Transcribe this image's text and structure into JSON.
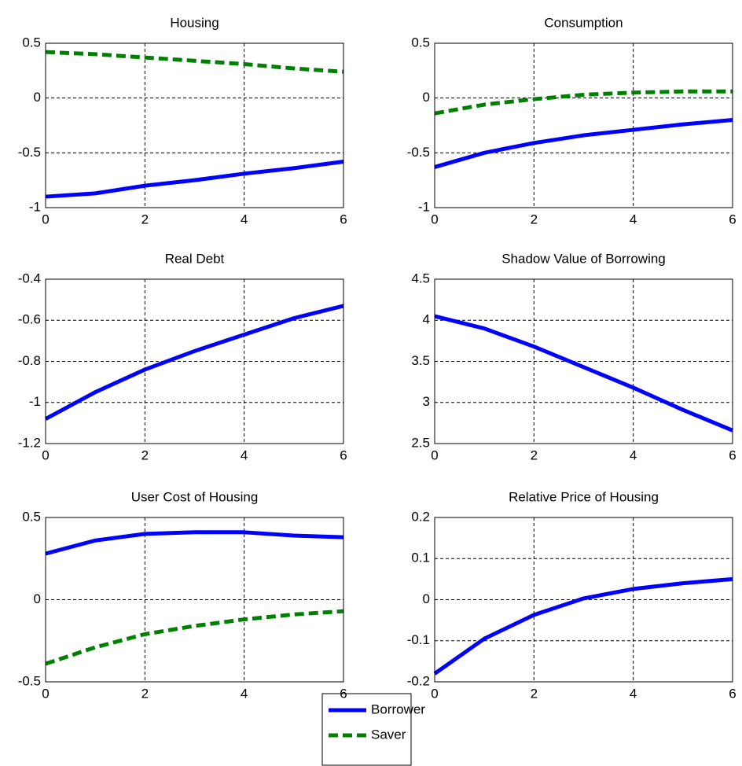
{
  "chart_data": [
    {
      "type": "line",
      "title": "Housing",
      "x": [
        0,
        1,
        2,
        3,
        4,
        5,
        6
      ],
      "xlim": [
        0,
        6
      ],
      "xticks": [
        0,
        2,
        4,
        6
      ],
      "ylim": [
        -1,
        0.5
      ],
      "yticks": [
        -1,
        -0.5,
        0,
        0.5
      ],
      "grid": true,
      "series": [
        {
          "name": "Borrower",
          "color": "#0000ff",
          "line_style": "solid",
          "values": [
            -0.9,
            -0.87,
            -0.8,
            -0.75,
            -0.69,
            -0.64,
            -0.58
          ]
        },
        {
          "name": "Saver",
          "color": "#008000",
          "line_style": "dashed",
          "values": [
            0.42,
            0.4,
            0.37,
            0.34,
            0.31,
            0.27,
            0.24
          ]
        }
      ]
    },
    {
      "type": "line",
      "title": "Consumption",
      "x": [
        0,
        1,
        2,
        3,
        4,
        5,
        6
      ],
      "xlim": [
        0,
        6
      ],
      "xticks": [
        0,
        2,
        4,
        6
      ],
      "ylim": [
        -1,
        0.5
      ],
      "yticks": [
        -1,
        -0.5,
        0,
        0.5
      ],
      "grid": true,
      "series": [
        {
          "name": "Borrower",
          "color": "#0000ff",
          "line_style": "solid",
          "values": [
            -0.63,
            -0.5,
            -0.41,
            -0.34,
            -0.29,
            -0.24,
            -0.2
          ]
        },
        {
          "name": "Saver",
          "color": "#008000",
          "line_style": "dashed",
          "values": [
            -0.14,
            -0.06,
            -0.01,
            0.03,
            0.05,
            0.06,
            0.06
          ]
        }
      ]
    },
    {
      "type": "line",
      "title": "Real Debt",
      "x": [
        0,
        1,
        2,
        3,
        4,
        5,
        6
      ],
      "xlim": [
        0,
        6
      ],
      "xticks": [
        0,
        2,
        4,
        6
      ],
      "ylim": [
        -1.2,
        -0.4
      ],
      "yticks": [
        -1.2,
        -1,
        -0.8,
        -0.6,
        -0.4
      ],
      "grid": true,
      "series": [
        {
          "name": "Borrower",
          "color": "#0000ff",
          "line_style": "solid",
          "values": [
            -1.08,
            -0.95,
            -0.84,
            -0.75,
            -0.67,
            -0.59,
            -0.53
          ]
        }
      ]
    },
    {
      "type": "line",
      "title": "Shadow Value of Borrowing",
      "x": [
        0,
        1,
        2,
        3,
        4,
        5,
        6
      ],
      "xlim": [
        0,
        6
      ],
      "xticks": [
        0,
        2,
        4,
        6
      ],
      "ylim": [
        2.5,
        4.5
      ],
      "yticks": [
        2.5,
        3,
        3.5,
        4,
        4.5
      ],
      "grid": true,
      "series": [
        {
          "name": "Borrower",
          "color": "#0000ff",
          "line_style": "solid",
          "values": [
            4.05,
            3.9,
            3.68,
            3.43,
            3.18,
            2.91,
            2.66
          ]
        }
      ]
    },
    {
      "type": "line",
      "title": "User Cost of Housing",
      "x": [
        0,
        1,
        2,
        3,
        4,
        5,
        6
      ],
      "xlim": [
        0,
        6
      ],
      "xticks": [
        0,
        2,
        4,
        6
      ],
      "ylim": [
        -0.5,
        0.5
      ],
      "yticks": [
        -0.5,
        0,
        0.5
      ],
      "grid": true,
      "series": [
        {
          "name": "Borrower",
          "color": "#0000ff",
          "line_style": "solid",
          "values": [
            0.28,
            0.36,
            0.4,
            0.41,
            0.41,
            0.39,
            0.38
          ]
        },
        {
          "name": "Saver",
          "color": "#008000",
          "line_style": "dashed",
          "values": [
            -0.39,
            -0.29,
            -0.21,
            -0.16,
            -0.12,
            -0.09,
            -0.07
          ]
        }
      ]
    },
    {
      "type": "line",
      "title": "Relative Price of Housing",
      "x": [
        0,
        1,
        2,
        3,
        4,
        5,
        6
      ],
      "xlim": [
        0,
        6
      ],
      "xticks": [
        0,
        2,
        4,
        6
      ],
      "ylim": [
        -0.2,
        0.2
      ],
      "yticks": [
        -0.2,
        -0.1,
        0,
        0.1,
        0.2
      ],
      "grid": true,
      "series": [
        {
          "name": "Borrower",
          "color": "#0000ff",
          "line_style": "solid",
          "values": [
            -0.18,
            -0.095,
            -0.037,
            0.003,
            0.026,
            0.04,
            0.05
          ]
        }
      ]
    }
  ]
}
